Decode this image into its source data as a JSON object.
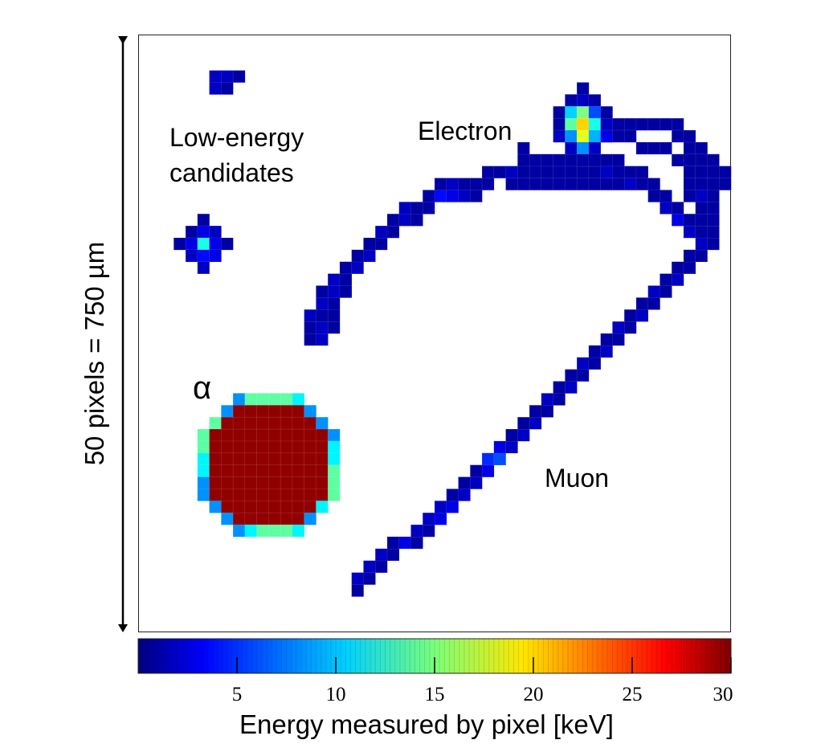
{
  "chart_data": {
    "type": "heatmap",
    "title": "",
    "annotations": {
      "low_energy": [
        "Low-energy",
        "candidates"
      ],
      "electron": "Electron",
      "alpha": "α",
      "muon": "Muon"
    },
    "scale_label": "50 pixels = 750 µm",
    "colorbar": {
      "label": "Energy measured by pixel [keV]",
      "range": [
        0,
        30
      ],
      "ticks": [
        "5",
        "10",
        "15",
        "20",
        "25",
        "30"
      ],
      "tick_values": [
        5,
        10,
        15,
        20,
        25,
        30
      ],
      "colormap": "jet"
    },
    "grid": {
      "width": 50,
      "height": 50
    },
    "tracks": [
      {
        "name": "Low-energy candidates",
        "pixels": [
          [
            6,
            3,
            2
          ],
          [
            7,
            3,
            2
          ],
          [
            8,
            3,
            1
          ],
          [
            6,
            4,
            2
          ],
          [
            7,
            4,
            1
          ],
          [
            5,
            15,
            1
          ],
          [
            4,
            16,
            1
          ],
          [
            5,
            16,
            3
          ],
          [
            6,
            16,
            2
          ],
          [
            3,
            17,
            1
          ],
          [
            4,
            17,
            3
          ],
          [
            5,
            17,
            12
          ],
          [
            6,
            17,
            3
          ],
          [
            7,
            17,
            1
          ],
          [
            4,
            18,
            2
          ],
          [
            5,
            18,
            4
          ],
          [
            6,
            18,
            3
          ],
          [
            5,
            19,
            2
          ]
        ]
      },
      {
        "name": "Electron",
        "pixels": [
          [
            14,
            25,
            1
          ],
          [
            15,
            25,
            2
          ],
          [
            14,
            24,
            1
          ],
          [
            15,
            24,
            2
          ],
          [
            16,
            24,
            1
          ],
          [
            14,
            23,
            2
          ],
          [
            15,
            23,
            1
          ],
          [
            16,
            23,
            1
          ],
          [
            15,
            22,
            2
          ],
          [
            16,
            22,
            1
          ],
          [
            15,
            21,
            1
          ],
          [
            16,
            21,
            2
          ],
          [
            17,
            21,
            1
          ],
          [
            16,
            20,
            2
          ],
          [
            17,
            20,
            1
          ],
          [
            17,
            19,
            1
          ],
          [
            18,
            19,
            2
          ],
          [
            18,
            18,
            1
          ],
          [
            19,
            18,
            2
          ],
          [
            19,
            17,
            1
          ],
          [
            20,
            17,
            1
          ],
          [
            20,
            16,
            2
          ],
          [
            21,
            16,
            1
          ],
          [
            21,
            15,
            1
          ],
          [
            22,
            15,
            2
          ],
          [
            23,
            15,
            1
          ],
          [
            22,
            14,
            2
          ],
          [
            23,
            14,
            1
          ],
          [
            24,
            14,
            1
          ],
          [
            24,
            13,
            1
          ],
          [
            25,
            13,
            4
          ],
          [
            26,
            13,
            3
          ],
          [
            27,
            13,
            2
          ],
          [
            28,
            13,
            1
          ],
          [
            25,
            12,
            1
          ],
          [
            26,
            12,
            2
          ],
          [
            27,
            12,
            1
          ],
          [
            28,
            12,
            1
          ],
          [
            29,
            12,
            1
          ],
          [
            29,
            11,
            1
          ],
          [
            30,
            11,
            1
          ],
          [
            31,
            11,
            2
          ],
          [
            32,
            11,
            1
          ],
          [
            33,
            11,
            1
          ],
          [
            34,
            11,
            1
          ],
          [
            35,
            11,
            1
          ],
          [
            36,
            11,
            1
          ],
          [
            37,
            11,
            1
          ],
          [
            38,
            11,
            1
          ],
          [
            39,
            11,
            2
          ],
          [
            40,
            11,
            1
          ],
          [
            41,
            11,
            1
          ],
          [
            42,
            11,
            1
          ],
          [
            31,
            12,
            1
          ],
          [
            32,
            12,
            1
          ],
          [
            33,
            12,
            1
          ],
          [
            34,
            12,
            1
          ],
          [
            35,
            12,
            1
          ],
          [
            36,
            12,
            1
          ],
          [
            37,
            12,
            1
          ],
          [
            38,
            12,
            1
          ],
          [
            39,
            12,
            1
          ],
          [
            40,
            12,
            1
          ],
          [
            41,
            12,
            2
          ],
          [
            42,
            12,
            1
          ],
          [
            43,
            12,
            1
          ],
          [
            32,
            10,
            1
          ],
          [
            33,
            10,
            1
          ],
          [
            34,
            10,
            1
          ],
          [
            35,
            10,
            1
          ],
          [
            36,
            10,
            1
          ],
          [
            37,
            10,
            1
          ],
          [
            38,
            10,
            1
          ],
          [
            39,
            10,
            1
          ],
          [
            40,
            10,
            1
          ],
          [
            32,
            9,
            1
          ],
          [
            43,
            13,
            1
          ],
          [
            44,
            13,
            1
          ],
          [
            44,
            14,
            2
          ],
          [
            45,
            14,
            1
          ],
          [
            45,
            15,
            3
          ],
          [
            46,
            15,
            1
          ],
          [
            46,
            16,
            2
          ],
          [
            47,
            16,
            1
          ],
          [
            40,
            7,
            1
          ],
          [
            41,
            7,
            1
          ],
          [
            42,
            7,
            1
          ],
          [
            43,
            7,
            1
          ],
          [
            44,
            7,
            1
          ],
          [
            45,
            7,
            1
          ],
          [
            45,
            8,
            1
          ],
          [
            46,
            8,
            1
          ],
          [
            46,
            9,
            1
          ],
          [
            47,
            9,
            1
          ],
          [
            47,
            10,
            1
          ],
          [
            48,
            10,
            1
          ],
          [
            48,
            11,
            1
          ],
          [
            49,
            11,
            1
          ],
          [
            48,
            12,
            1
          ],
          [
            49,
            12,
            1
          ],
          [
            47,
            13,
            2
          ],
          [
            48,
            13,
            1
          ],
          [
            48,
            14,
            1
          ],
          [
            47,
            14,
            1
          ],
          [
            46,
            13,
            1
          ],
          [
            38,
            8,
            2
          ],
          [
            39,
            8,
            1
          ],
          [
            40,
            8,
            1
          ],
          [
            41,
            8,
            1
          ],
          [
            42,
            9,
            1
          ],
          [
            43,
            9,
            1
          ],
          [
            44,
            9,
            1
          ],
          [
            45,
            10,
            1
          ],
          [
            46,
            10,
            1
          ],
          [
            46,
            11,
            1
          ],
          [
            47,
            11,
            1
          ],
          [
            46,
            12,
            1
          ],
          [
            47,
            12,
            1
          ],
          [
            36,
            5,
            1
          ],
          [
            37,
            5,
            2
          ],
          [
            38,
            5,
            1
          ],
          [
            35,
            6,
            1
          ],
          [
            36,
            6,
            10
          ],
          [
            37,
            6,
            15
          ],
          [
            38,
            6,
            6
          ],
          [
            39,
            6,
            1
          ],
          [
            35,
            7,
            1
          ],
          [
            36,
            7,
            14
          ],
          [
            37,
            7,
            20
          ],
          [
            38,
            7,
            12
          ],
          [
            39,
            7,
            2
          ],
          [
            35,
            8,
            2
          ],
          [
            36,
            8,
            8
          ],
          [
            37,
            8,
            18
          ],
          [
            38,
            8,
            9
          ],
          [
            39,
            8,
            3
          ],
          [
            36,
            9,
            2
          ],
          [
            37,
            9,
            8
          ],
          [
            38,
            9,
            2
          ],
          [
            37,
            4,
            1
          ],
          [
            37,
            10,
            1
          ],
          [
            38,
            10,
            1
          ]
        ]
      },
      {
        "name": "Muon",
        "pixels": [
          [
            18,
            46,
            1
          ],
          [
            18,
            45,
            2
          ],
          [
            19,
            45,
            1
          ],
          [
            19,
            44,
            2
          ],
          [
            20,
            44,
            1
          ],
          [
            20,
            43,
            2
          ],
          [
            21,
            43,
            1
          ],
          [
            21,
            42,
            1
          ],
          [
            22,
            42,
            3
          ],
          [
            23,
            42,
            1
          ],
          [
            23,
            41,
            2
          ],
          [
            24,
            41,
            1
          ],
          [
            24,
            40,
            2
          ],
          [
            25,
            40,
            3
          ],
          [
            25,
            39,
            2
          ],
          [
            26,
            39,
            3
          ],
          [
            26,
            38,
            1
          ],
          [
            27,
            38,
            2
          ],
          [
            27,
            37,
            1
          ],
          [
            28,
            37,
            2
          ],
          [
            28,
            36,
            1
          ],
          [
            29,
            36,
            3
          ],
          [
            29,
            35,
            5
          ],
          [
            30,
            35,
            6
          ],
          [
            30,
            34,
            3
          ],
          [
            31,
            34,
            2
          ],
          [
            31,
            33,
            1
          ],
          [
            32,
            33,
            2
          ],
          [
            32,
            32,
            1
          ],
          [
            33,
            32,
            2
          ],
          [
            33,
            31,
            1
          ],
          [
            34,
            31,
            1
          ],
          [
            34,
            30,
            2
          ],
          [
            35,
            30,
            1
          ],
          [
            35,
            29,
            1
          ],
          [
            36,
            29,
            2
          ],
          [
            36,
            28,
            1
          ],
          [
            37,
            28,
            1
          ],
          [
            37,
            27,
            2
          ],
          [
            38,
            27,
            1
          ],
          [
            38,
            26,
            1
          ],
          [
            39,
            26,
            2
          ],
          [
            39,
            25,
            1
          ],
          [
            40,
            25,
            1
          ],
          [
            40,
            24,
            2
          ],
          [
            41,
            24,
            1
          ],
          [
            41,
            23,
            1
          ],
          [
            42,
            23,
            2
          ],
          [
            42,
            22,
            1
          ],
          [
            43,
            22,
            1
          ],
          [
            43,
            21,
            2
          ],
          [
            44,
            21,
            1
          ],
          [
            44,
            20,
            1
          ],
          [
            45,
            20,
            2
          ],
          [
            45,
            19,
            1
          ],
          [
            46,
            19,
            1
          ],
          [
            46,
            18,
            1
          ],
          [
            47,
            18,
            1
          ],
          [
            47,
            17,
            2
          ],
          [
            48,
            17,
            1
          ],
          [
            48,
            16,
            1
          ],
          [
            48,
            15,
            1
          ],
          [
            47,
            15,
            1
          ]
        ]
      },
      {
        "name": "α",
        "filled_disk": {
          "center": [
            10.5,
            35.5
          ],
          "radius": 6.3,
          "core_energy": 29.5
        }
      }
    ]
  }
}
